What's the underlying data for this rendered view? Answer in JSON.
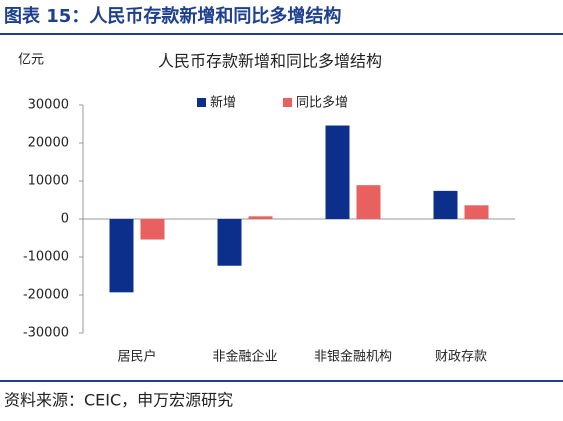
{
  "header": {
    "title": "图表 15：人民币存款新增和同比多增结构"
  },
  "chart_data": {
    "type": "bar",
    "title": "人民币存款新增和同比多增结构",
    "y_label": "亿元",
    "categories": [
      "居民户",
      "非金融企业",
      "非银金融机构",
      "财政存款"
    ],
    "series": [
      {
        "name": "新增",
        "color": "#0d2f8c",
        "values": [
          -19300,
          -12300,
          24600,
          7400
        ]
      },
      {
        "name": "同比多增",
        "color": "#e8605f",
        "values": [
          -5400,
          700,
          8900,
          3600
        ]
      }
    ],
    "ylim": [
      -30000,
      30000
    ],
    "yticks": [
      -30000,
      -20000,
      -10000,
      0,
      10000,
      20000,
      30000
    ],
    "grid": false,
    "legend": "top"
  },
  "footer": {
    "source": "资料来源：CEIC，申万宏源研究"
  }
}
